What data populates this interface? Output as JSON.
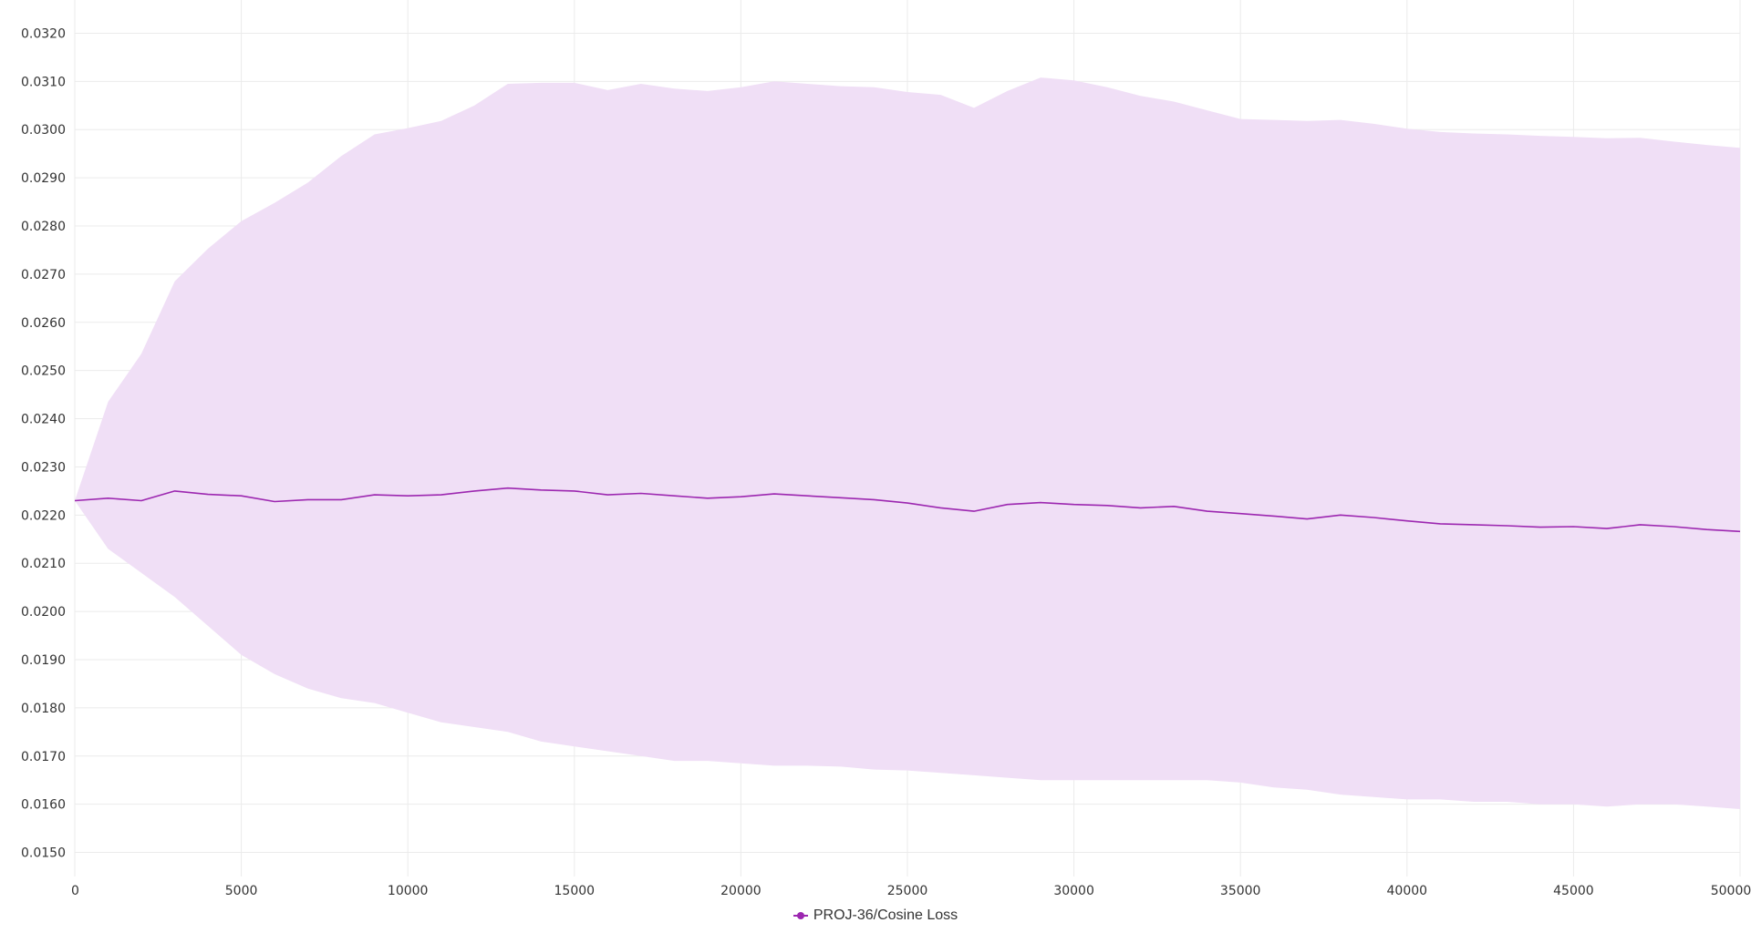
{
  "chart_data": {
    "type": "line",
    "title": "",
    "xlabel": "",
    "ylabel": "",
    "xlim": [
      0,
      50000
    ],
    "ylim": [
      0.0145,
      0.0325
    ],
    "x_ticks": [
      0,
      5000,
      10000,
      15000,
      20000,
      25000,
      30000,
      35000,
      40000,
      45000,
      50000
    ],
    "x_tick_labels": [
      "0",
      "5000",
      "10000",
      "15000",
      "20000",
      "25000",
      "30000",
      "35000",
      "40000",
      "45000",
      "50000"
    ],
    "y_ticks": [
      0.015,
      0.016,
      0.017,
      0.018,
      0.019,
      0.02,
      0.021,
      0.022,
      0.023,
      0.024,
      0.025,
      0.026,
      0.027,
      0.028,
      0.029,
      0.03,
      0.031,
      0.032
    ],
    "y_tick_labels": [
      "0.0150",
      "0.0160",
      "0.0170",
      "0.0180",
      "0.0190",
      "0.0200",
      "0.0210",
      "0.0220",
      "0.0230",
      "0.0240",
      "0.0250",
      "0.0260",
      "0.0270",
      "0.0280",
      "0.0290",
      "0.0300",
      "0.0310",
      "0.0320"
    ],
    "grid": true,
    "legend_position": "bottom-center",
    "series": [
      {
        "name": "PROJ-36/Cosine Loss",
        "color": "#9c27b0",
        "band_color": "#f0dff6",
        "x": [
          0,
          1000,
          2000,
          3000,
          4000,
          5000,
          6000,
          7000,
          8000,
          9000,
          10000,
          11000,
          12000,
          13000,
          14000,
          15000,
          16000,
          17000,
          18000,
          19000,
          20000,
          21000,
          22000,
          23000,
          24000,
          25000,
          26000,
          27000,
          28000,
          29000,
          30000,
          31000,
          32000,
          33000,
          34000,
          35000,
          36000,
          37000,
          38000,
          39000,
          40000,
          41000,
          42000,
          43000,
          44000,
          45000,
          46000,
          47000,
          48000,
          49000,
          50000
        ],
        "y": [
          0.0223,
          0.02235,
          0.0223,
          0.0225,
          0.02243,
          0.0224,
          0.02228,
          0.02232,
          0.02232,
          0.02242,
          0.0224,
          0.02242,
          0.0225,
          0.02256,
          0.02252,
          0.0225,
          0.02242,
          0.02245,
          0.0224,
          0.02235,
          0.02238,
          0.02244,
          0.0224,
          0.02236,
          0.02232,
          0.02225,
          0.02215,
          0.02208,
          0.02222,
          0.02226,
          0.02222,
          0.0222,
          0.02215,
          0.02218,
          0.02208,
          0.02203,
          0.02198,
          0.02192,
          0.022,
          0.02195,
          0.02188,
          0.02182,
          0.0218,
          0.02178,
          0.02175,
          0.02176,
          0.02172,
          0.0218,
          0.02176,
          0.0217,
          0.02166
        ],
        "band_upper": [
          0.0223,
          0.02435,
          0.02535,
          0.02685,
          0.02753,
          0.0281,
          0.02848,
          0.0289,
          0.02945,
          0.0299,
          0.03003,
          0.03018,
          0.0305,
          0.03095,
          0.03097,
          0.03097,
          0.03082,
          0.03095,
          0.03085,
          0.0308,
          0.03088,
          0.031,
          0.03095,
          0.0309,
          0.03088,
          0.03078,
          0.03072,
          0.03045,
          0.0308,
          0.03108,
          0.03102,
          0.03088,
          0.0307,
          0.03058,
          0.0304,
          0.03022,
          0.0302,
          0.03018,
          0.0302,
          0.03012,
          0.03002,
          0.02995,
          0.02992,
          0.0299,
          0.02987,
          0.02985,
          0.02982,
          0.02983,
          0.02975,
          0.02968,
          0.02962
        ],
        "band_lower": [
          0.0223,
          0.0213,
          0.0208,
          0.0203,
          0.0197,
          0.0191,
          0.0187,
          0.0184,
          0.0182,
          0.0181,
          0.0179,
          0.0177,
          0.0176,
          0.0175,
          0.0173,
          0.0172,
          0.0171,
          0.017,
          0.0169,
          0.0169,
          0.01685,
          0.0168,
          0.0168,
          0.01678,
          0.01672,
          0.0167,
          0.01665,
          0.0166,
          0.01655,
          0.0165,
          0.0165,
          0.0165,
          0.0165,
          0.0165,
          0.0165,
          0.01645,
          0.01635,
          0.0163,
          0.0162,
          0.01615,
          0.0161,
          0.0161,
          0.01605,
          0.01605,
          0.016,
          0.016,
          0.01595,
          0.016,
          0.016,
          0.01595,
          0.0159
        ]
      }
    ]
  }
}
